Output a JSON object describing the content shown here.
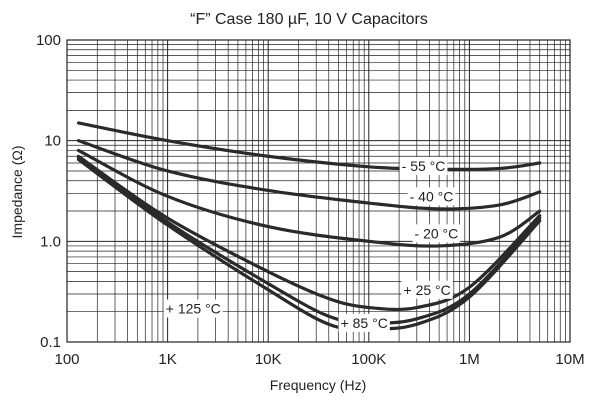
{
  "chart_data": {
    "type": "line",
    "title": "“F” Case 180 µF, 10 V Capacitors",
    "xlabel": "Frequency (Hz)",
    "ylabel": "Impedance (Ω)",
    "xscale": "log",
    "yscale": "log",
    "xlim": [
      100,
      10000000
    ],
    "ylim": [
      0.1,
      100
    ],
    "grid": true,
    "x_ticks": [
      {
        "value": 100,
        "label": "100"
      },
      {
        "value": 1000,
        "label": "1K"
      },
      {
        "value": 10000,
        "label": "10K"
      },
      {
        "value": 100000,
        "label": "100K"
      },
      {
        "value": 1000000,
        "label": "1M"
      },
      {
        "value": 10000000,
        "label": "10M"
      }
    ],
    "y_ticks": [
      {
        "value": 0.1,
        "label": "0.1"
      },
      {
        "value": 1,
        "label": "1.0"
      },
      {
        "value": 10,
        "label": "10"
      },
      {
        "value": 100,
        "label": "100"
      }
    ],
    "series": [
      {
        "name": "- 55 °C",
        "label_at": [
          350000,
          5.6
        ],
        "points": [
          [
            130,
            15
          ],
          [
            1000,
            10
          ],
          [
            10000,
            7
          ],
          [
            100000,
            5.5
          ],
          [
            500000,
            5.2
          ],
          [
            2000000,
            5.3
          ],
          [
            5000000,
            6
          ]
        ]
      },
      {
        "name": "- 40 °C",
        "label_at": [
          420000,
          2.8
        ],
        "points": [
          [
            130,
            10
          ],
          [
            1000,
            5
          ],
          [
            10000,
            3.2
          ],
          [
            100000,
            2.4
          ],
          [
            500000,
            2.1
          ],
          [
            2000000,
            2.3
          ],
          [
            5000000,
            3.1
          ]
        ]
      },
      {
        "name": "- 20 °C",
        "label_at": [
          470000,
          1.2
        ],
        "points": [
          [
            130,
            8
          ],
          [
            1000,
            2.8
          ],
          [
            10000,
            1.4
          ],
          [
            100000,
            1.0
          ],
          [
            500000,
            0.9
          ],
          [
            2000000,
            1.1
          ],
          [
            5000000,
            2
          ]
        ]
      },
      {
        "name": "+ 25 °C",
        "label_at": [
          380000,
          0.33
        ],
        "points": [
          [
            130,
            7
          ],
          [
            1000,
            1.7
          ],
          [
            10000,
            0.5
          ],
          [
            40000,
            0.27
          ],
          [
            100000,
            0.22
          ],
          [
            300000,
            0.22
          ],
          [
            1000000,
            0.35
          ],
          [
            5000000,
            1.8
          ]
        ]
      },
      {
        "name": "+ 85 °C",
        "label_at": [
          90000,
          0.155
        ],
        "points": [
          [
            130,
            6.8
          ],
          [
            1000,
            1.55
          ],
          [
            10000,
            0.38
          ],
          [
            40000,
            0.18
          ],
          [
            100000,
            0.155
          ],
          [
            300000,
            0.17
          ],
          [
            1000000,
            0.3
          ],
          [
            5000000,
            1.7
          ]
        ]
      },
      {
        "name": "+ 125 °C",
        "label_at": [
          1800,
          0.215
        ],
        "points": [
          [
            130,
            6.5
          ],
          [
            1000,
            1.45
          ],
          [
            10000,
            0.33
          ],
          [
            40000,
            0.15
          ],
          [
            100000,
            0.135
          ],
          [
            300000,
            0.15
          ],
          [
            1000000,
            0.28
          ],
          [
            5000000,
            1.6
          ]
        ]
      }
    ]
  }
}
